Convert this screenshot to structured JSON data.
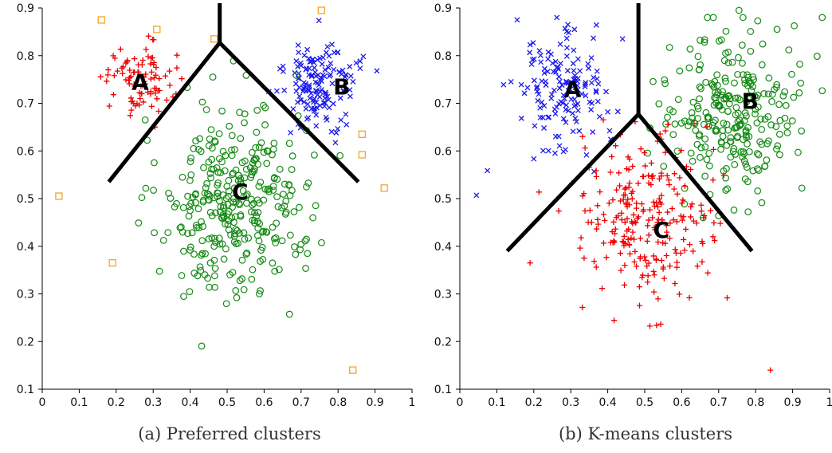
{
  "colors": {
    "red": "#ee0000",
    "blue": "#1a1aee",
    "green": "#148a14",
    "orange": "#f5a623",
    "boundary": "#000000",
    "axis": "#000000"
  },
  "chart_data": [
    {
      "type": "scatter",
      "caption": "(a) Preferred clusters",
      "xlim": [
        0,
        1
      ],
      "ylim": [
        0.1,
        0.9
      ],
      "xticks": [
        "0",
        "0.1",
        "0.2",
        "0.3",
        "0.4",
        "0.5",
        "0.6",
        "0.7",
        "0.8",
        "0.9",
        "1"
      ],
      "yticks": [
        "0.1",
        "0.2",
        "0.3",
        "0.4",
        "0.5",
        "0.6",
        "0.7",
        "0.8",
        "0.9"
      ],
      "grid": false,
      "series": [
        {
          "cluster": "A",
          "marker": "plus",
          "color": "#ee0000",
          "center": [
            0.26,
            0.75
          ],
          "spread": [
            0.045,
            0.04
          ],
          "count": 90
        },
        {
          "cluster": "B",
          "marker": "x",
          "color": "#1a1aee",
          "center": [
            0.75,
            0.74
          ],
          "spread": [
            0.05,
            0.045
          ],
          "count": 150
        },
        {
          "cluster": "C",
          "marker": "circle",
          "color": "#148a14",
          "center": [
            0.52,
            0.49
          ],
          "spread": [
            0.1,
            0.1
          ],
          "count": 330
        },
        {
          "cluster": "noise",
          "marker": "square",
          "color": "#f5a623",
          "points": [
            [
              0.16,
              0.875
            ],
            [
              0.31,
              0.855
            ],
            [
              0.465,
              0.835
            ],
            [
              0.755,
              0.895
            ],
            [
              0.045,
              0.505
            ],
            [
              0.19,
              0.365
            ],
            [
              0.865,
              0.635
            ],
            [
              0.865,
              0.592
            ],
            [
              0.925,
              0.522
            ],
            [
              0.84,
              0.14
            ]
          ]
        }
      ],
      "labels": [
        {
          "text": "A",
          "x": 0.265,
          "y": 0.745
        },
        {
          "text": "B",
          "x": 0.81,
          "y": 0.735
        },
        {
          "text": "C",
          "x": 0.535,
          "y": 0.515
        }
      ],
      "boundaries": [
        [
          [
            0.48,
            0.91
          ],
          [
            0.48,
            0.827
          ]
        ],
        [
          [
            0.48,
            0.827
          ],
          [
            0.18,
            0.535
          ]
        ],
        [
          [
            0.48,
            0.827
          ],
          [
            0.855,
            0.535
          ]
        ]
      ]
    },
    {
      "type": "scatter",
      "caption": "(b) K-means clusters",
      "xlim": [
        0,
        1
      ],
      "ylim": [
        0.1,
        0.9
      ],
      "xticks": [
        "0",
        "0.1",
        "0.2",
        "0.3",
        "0.4",
        "0.5",
        "0.6",
        "0.7",
        "0.8",
        "0.9",
        "1"
      ],
      "yticks": [
        "0.1",
        "0.2",
        "0.3",
        "0.4",
        "0.5",
        "0.6",
        "0.7",
        "0.8",
        "0.9"
      ],
      "grid": false,
      "series": [
        {
          "cluster": "A",
          "marker": "x",
          "color": "#1a1aee",
          "center": [
            0.27,
            0.72
          ],
          "spread": [
            0.06,
            0.06
          ],
          "count": 150,
          "extra": [
            [
              0.155,
              0.875
            ],
            [
              0.44,
              0.835
            ],
            [
              0.045,
              0.507
            ],
            [
              0.31,
              0.855
            ]
          ]
        },
        {
          "cluster": "B",
          "marker": "circle",
          "color": "#148a14",
          "center": [
            0.73,
            0.68
          ],
          "spread": [
            0.09,
            0.08
          ],
          "count": 260,
          "extra": [
            [
              0.755,
              0.895
            ],
            [
              0.925,
              0.522
            ],
            [
              0.865,
              0.635
            ],
            [
              0.865,
              0.592
            ]
          ]
        },
        {
          "cluster": "C",
          "marker": "plus",
          "color": "#ee0000",
          "center": [
            0.5,
            0.46
          ],
          "spread": [
            0.09,
            0.09
          ],
          "count": 250,
          "extra": [
            [
              0.19,
              0.365
            ],
            [
              0.84,
              0.14
            ]
          ]
        }
      ],
      "labels": [
        {
          "text": "A",
          "x": 0.305,
          "y": 0.73
        },
        {
          "text": "B",
          "x": 0.785,
          "y": 0.705
        },
        {
          "text": "C",
          "x": 0.545,
          "y": 0.435
        }
      ],
      "boundaries": [
        [
          [
            0.483,
            0.91
          ],
          [
            0.483,
            0.677
          ]
        ],
        [
          [
            0.483,
            0.677
          ],
          [
            0.128,
            0.39
          ]
        ],
        [
          [
            0.483,
            0.677
          ],
          [
            0.79,
            0.39
          ]
        ]
      ]
    }
  ]
}
